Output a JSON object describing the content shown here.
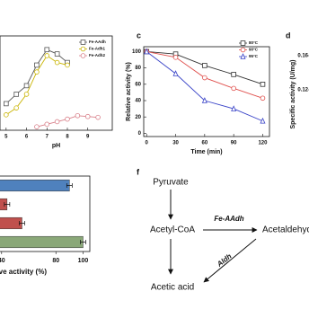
{
  "chart_data": [
    {
      "type": "line",
      "xlabel": "pH",
      "xlim": [
        4.7,
        10.2
      ],
      "ylim": [
        0,
        110
      ],
      "xticks": [
        5,
        6,
        7,
        8,
        9
      ],
      "legend": "upper right",
      "series": [
        {
          "name": "Fe-AAdh",
          "color": "#555555",
          "marker": "square",
          "x": [
            5,
            5.5,
            6,
            6.5,
            7,
            7.5,
            8
          ],
          "values": [
            31,
            42,
            52,
            76,
            94,
            89,
            79
          ]
        },
        {
          "name": "Fe-Adh1",
          "color": "#c9b400",
          "marker": "circle",
          "x": [
            5,
            5.5,
            6,
            6.5,
            7,
            7.5,
            8
          ],
          "values": [
            18,
            26,
            42,
            68,
            87,
            79,
            76
          ]
        },
        {
          "name": "Fe-Adh2",
          "color": "#d9808a",
          "marker": "circle",
          "x": [
            6.5,
            7,
            7.5,
            8,
            8.5,
            9,
            9.5
          ],
          "values": [
            4,
            7,
            10,
            13,
            17,
            16,
            15
          ]
        }
      ]
    },
    {
      "type": "line",
      "label": "c",
      "xlabel": "Time (min)",
      "ylabel": "Relative activity (%)",
      "x": [
        0,
        30,
        60,
        90,
        120
      ],
      "xlim": [
        -3,
        127
      ],
      "ylim": [
        -4,
        106
      ],
      "xticks": [
        0,
        30,
        60,
        90,
        120
      ],
      "yticks": [
        0,
        20,
        40,
        60,
        80,
        100
      ],
      "legend": "upper right",
      "series": [
        {
          "name": "80°C",
          "color": "#333333",
          "marker": "square",
          "values": [
            100,
            97,
            83,
            72,
            60
          ]
        },
        {
          "name": "90°C",
          "color": "#e0504d",
          "marker": "circle",
          "values": [
            100,
            93,
            68,
            55,
            43
          ]
        },
        {
          "name": "95°C",
          "color": "#3a44c8",
          "marker": "triangle",
          "values": [
            100,
            73,
            40,
            30,
            15
          ]
        }
      ]
    },
    {
      "type": "axes",
      "label": "d",
      "ylabel": "Specific activity (U/mg)",
      "ylim": [
        0.06,
        0.18
      ],
      "yticks": [
        0.12,
        0.16
      ]
    },
    {
      "type": "hbar",
      "xlabel": "Relative activity (%)",
      "xlim": [
        12,
        105
      ],
      "xticks": [
        40,
        80,
        100
      ],
      "values": [
        90,
        44,
        55,
        100
      ],
      "errors": [
        2,
        2,
        2,
        2
      ],
      "colors": [
        "#4f81bd",
        "#c0504d",
        "#c0504d",
        "#8aa878"
      ]
    }
  ],
  "diagram": {
    "label": "f",
    "nodes": [
      "Pyruvate",
      "Acetyl-CoA",
      "Acetaldehyde",
      "Acetic acid"
    ],
    "edges": [
      "Fe-AAdh",
      "Aldh"
    ]
  }
}
